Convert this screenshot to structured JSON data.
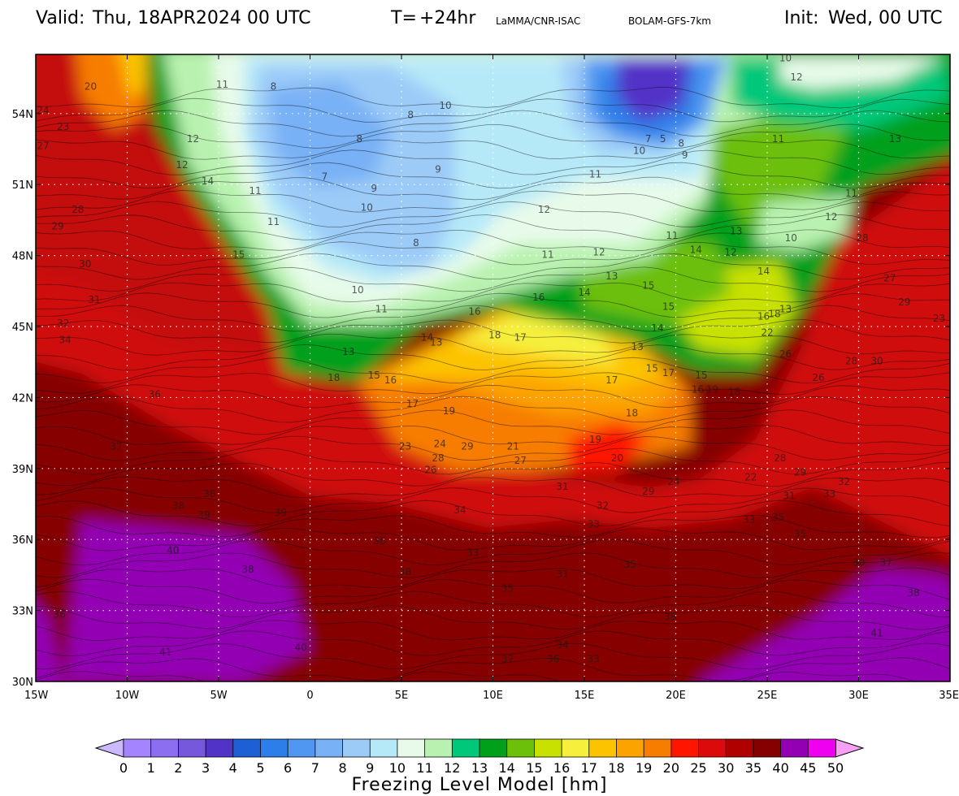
{
  "header": {
    "valid_label": "Valid:",
    "valid_value": "Thu, 18APR2024   00 UTC",
    "t_label": "T=",
    "t_value": "+24hr",
    "source": "LaMMA/CNR-ISAC",
    "model": "BOLAM-GFS-7km",
    "init_label": "Init:",
    "init_value": "Wed, 00 UTC"
  },
  "map": {
    "lon_ticks": [
      "15W",
      "10W",
      "5W",
      "0",
      "5E",
      "10E",
      "15E",
      "20E",
      "25E",
      "30E",
      "35E"
    ],
    "lat_ticks": [
      "54N",
      "51N",
      "48N",
      "45N",
      "42N",
      "39N",
      "36N",
      "33N",
      "30N"
    ],
    "corner_label": "30N",
    "grid": "dotted",
    "contour_labels": [
      {
        "v": "24",
        "lon": -14.6,
        "lat": 54
      },
      {
        "v": "20",
        "lon": -12,
        "lat": 55
      },
      {
        "v": "23",
        "lon": -13.5,
        "lat": 53.3
      },
      {
        "v": "27",
        "lon": -14.6,
        "lat": 52.5
      },
      {
        "v": "28",
        "lon": -12.7,
        "lat": 49.8
      },
      {
        "v": "29",
        "lon": -13.8,
        "lat": 49.1
      },
      {
        "v": "30",
        "lon": -12.3,
        "lat": 47.5
      },
      {
        "v": "31",
        "lon": -11.8,
        "lat": 46
      },
      {
        "v": "32",
        "lon": -13.5,
        "lat": 45
      },
      {
        "v": "34",
        "lon": -13.4,
        "lat": 44.3
      },
      {
        "v": "36",
        "lon": -8.5,
        "lat": 42
      },
      {
        "v": "37",
        "lon": -10.6,
        "lat": 39.8
      },
      {
        "v": "38",
        "lon": -5.5,
        "lat": 37.8
      },
      {
        "v": "38",
        "lon": -7.2,
        "lat": 37.3
      },
      {
        "v": "39",
        "lon": -5.8,
        "lat": 36.9
      },
      {
        "v": "39",
        "lon": -1.6,
        "lat": 37
      },
      {
        "v": "40",
        "lon": -7.5,
        "lat": 35.4
      },
      {
        "v": "38",
        "lon": -3.4,
        "lat": 34.6
      },
      {
        "v": "36",
        "lon": -13.7,
        "lat": 32.7
      },
      {
        "v": "41",
        "lon": -7.9,
        "lat": 31.1
      },
      {
        "v": "40",
        "lon": -0.5,
        "lat": 31.3
      },
      {
        "v": "36",
        "lon": 3.8,
        "lat": 35.8
      },
      {
        "v": "38",
        "lon": 5.2,
        "lat": 34.5
      },
      {
        "v": "34",
        "lon": 8.2,
        "lat": 37.1
      },
      {
        "v": "33",
        "lon": 8.9,
        "lat": 35.3
      },
      {
        "v": "35",
        "lon": 10.8,
        "lat": 33.8
      },
      {
        "v": "31",
        "lon": 13.8,
        "lat": 34.4
      },
      {
        "v": "33",
        "lon": 15.5,
        "lat": 36.5
      },
      {
        "v": "34",
        "lon": 13.8,
        "lat": 31.4
      },
      {
        "v": "37",
        "lon": 10.8,
        "lat": 30.8
      },
      {
        "v": "36",
        "lon": 13.3,
        "lat": 30.8
      },
      {
        "v": "33",
        "lon": 15.5,
        "lat": 30.8
      },
      {
        "v": "38",
        "lon": 19.7,
        "lat": 32.6
      },
      {
        "v": "35",
        "lon": 17.5,
        "lat": 34.8
      },
      {
        "v": "33",
        "lon": 24,
        "lat": 36.7
      },
      {
        "v": "35",
        "lon": 25.6,
        "lat": 36.8
      },
      {
        "v": "30",
        "lon": 30,
        "lat": 34.9
      },
      {
        "v": "37",
        "lon": 31.5,
        "lat": 34.9
      },
      {
        "v": "38",
        "lon": 33,
        "lat": 33.6
      },
      {
        "v": "41",
        "lon": 31,
        "lat": 31.9
      },
      {
        "v": "31",
        "lon": 13.8,
        "lat": 38.1
      },
      {
        "v": "32",
        "lon": 16,
        "lat": 37.3
      },
      {
        "v": "29",
        "lon": 18.5,
        "lat": 37.9
      },
      {
        "v": "24",
        "lon": 19.9,
        "lat": 38.3
      },
      {
        "v": "22",
        "lon": 24.1,
        "lat": 38.5
      },
      {
        "v": "28",
        "lon": 25.7,
        "lat": 39.3
      },
      {
        "v": "29",
        "lon": 26.8,
        "lat": 38.7
      },
      {
        "v": "31",
        "lon": 26.2,
        "lat": 37.7
      },
      {
        "v": "33",
        "lon": 28.4,
        "lat": 37.8
      },
      {
        "v": "35",
        "lon": 26.8,
        "lat": 36.1
      },
      {
        "v": "32",
        "lon": 29.2,
        "lat": 38.3
      },
      {
        "v": "26",
        "lon": 26,
        "lat": 43.7
      },
      {
        "v": "26",
        "lon": 27.8,
        "lat": 42.7
      },
      {
        "v": "28",
        "lon": 29.6,
        "lat": 43.4
      },
      {
        "v": "30",
        "lon": 31,
        "lat": 43.4
      },
      {
        "v": "27",
        "lon": 31.7,
        "lat": 46.9
      },
      {
        "v": "29",
        "lon": 32.5,
        "lat": 45.9
      },
      {
        "v": "28",
        "lon": 30.2,
        "lat": 48.6
      },
      {
        "v": "23",
        "lon": 34.4,
        "lat": 45.2
      },
      {
        "v": "22",
        "lon": 25,
        "lat": 44.6
      },
      {
        "v": "18",
        "lon": 25.4,
        "lat": 45.4
      },
      {
        "v": "16",
        "lon": 24.8,
        "lat": 45.3
      },
      {
        "v": "19",
        "lon": 22,
        "lat": 42.2
      },
      {
        "v": "18",
        "lon": 23.2,
        "lat": 42.1
      },
      {
        "v": "16",
        "lon": 21.2,
        "lat": 42.2
      },
      {
        "v": "15",
        "lon": 21.4,
        "lat": 42.8
      },
      {
        "v": "17",
        "lon": 19.6,
        "lat": 42.9
      },
      {
        "v": "18",
        "lon": 17.6,
        "lat": 41.2
      },
      {
        "v": "19",
        "lon": 15.6,
        "lat": 40.1
      },
      {
        "v": "20",
        "lon": 16.8,
        "lat": 39.3
      },
      {
        "v": "21",
        "lon": 11.1,
        "lat": 39.8
      },
      {
        "v": "27",
        "lon": 11.5,
        "lat": 39.2
      },
      {
        "v": "28",
        "lon": 7,
        "lat": 39.3
      },
      {
        "v": "24",
        "lon": 7.1,
        "lat": 39.9
      },
      {
        "v": "23",
        "lon": 5.2,
        "lat": 39.8
      },
      {
        "v": "29",
        "lon": 8.6,
        "lat": 39.8
      },
      {
        "v": "26",
        "lon": 6.6,
        "lat": 38.8
      },
      {
        "v": "19",
        "lon": 7.6,
        "lat": 41.3
      },
      {
        "v": "17",
        "lon": 5.6,
        "lat": 41.6
      },
      {
        "v": "16",
        "lon": 4.4,
        "lat": 42.6
      },
      {
        "v": "15",
        "lon": 3.5,
        "lat": 42.8
      },
      {
        "v": "18",
        "lon": 1.3,
        "lat": 42.7
      },
      {
        "v": "13",
        "lon": 2.1,
        "lat": 43.8
      },
      {
        "v": "14",
        "lon": 6.4,
        "lat": 44.4
      },
      {
        "v": "13",
        "lon": 6.9,
        "lat": 44.2
      },
      {
        "v": "18",
        "lon": 10.1,
        "lat": 44.5
      },
      {
        "v": "17",
        "lon": 11.5,
        "lat": 44.4
      },
      {
        "v": "16",
        "lon": 9,
        "lat": 45.5
      },
      {
        "v": "16",
        "lon": 12.5,
        "lat": 46.1
      },
      {
        "v": "14",
        "lon": 15,
        "lat": 46.3
      },
      {
        "v": "17",
        "lon": 16.5,
        "lat": 42.6
      },
      {
        "v": "15",
        "lon": 18.7,
        "lat": 43.1
      },
      {
        "v": "13",
        "lon": 17.9,
        "lat": 44
      },
      {
        "v": "14",
        "lon": 19,
        "lat": 44.8
      },
      {
        "v": "15",
        "lon": 19.6,
        "lat": 45.7
      },
      {
        "v": "15",
        "lon": 18.5,
        "lat": 46.6
      },
      {
        "v": "13",
        "lon": 16.5,
        "lat": 47
      },
      {
        "v": "14",
        "lon": 21.1,
        "lat": 48.1
      },
      {
        "v": "12",
        "lon": 15.8,
        "lat": 48
      },
      {
        "v": "11",
        "lon": 13,
        "lat": 47.9
      },
      {
        "v": "11",
        "lon": 19.8,
        "lat": 48.7
      },
      {
        "v": "12",
        "lon": 12.8,
        "lat": 49.8
      },
      {
        "v": "11",
        "lon": 15.6,
        "lat": 51.3
      },
      {
        "v": "12",
        "lon": 23,
        "lat": 48
      },
      {
        "v": "13",
        "lon": 23.3,
        "lat": 48.9
      },
      {
        "v": "14",
        "lon": 24.8,
        "lat": 47.2
      },
      {
        "v": "13",
        "lon": 26,
        "lat": 45.6
      },
      {
        "v": "10",
        "lon": 26.3,
        "lat": 48.6
      },
      {
        "v": "11",
        "lon": 29.6,
        "lat": 50.5
      },
      {
        "v": "12",
        "lon": 28.5,
        "lat": 49.5
      },
      {
        "v": "13",
        "lon": 32,
        "lat": 52.8
      },
      {
        "v": "11",
        "lon": 25.6,
        "lat": 52.8
      },
      {
        "v": "12",
        "lon": 26.6,
        "lat": 55.4
      },
      {
        "v": "10",
        "lon": 26,
        "lat": 56.2
      },
      {
        "v": "9",
        "lon": 20.5,
        "lat": 52.1
      },
      {
        "v": "10",
        "lon": 18,
        "lat": 52.3
      },
      {
        "v": "8",
        "lon": 20.3,
        "lat": 52.6
      },
      {
        "v": "7",
        "lon": 18.5,
        "lat": 52.8
      },
      {
        "v": "5",
        "lon": 19.3,
        "lat": 52.8
      },
      {
        "v": "10",
        "lon": 7.4,
        "lat": 54.2
      },
      {
        "v": "9",
        "lon": 7,
        "lat": 51.5
      },
      {
        "v": "8",
        "lon": 5.5,
        "lat": 53.8
      },
      {
        "v": "8",
        "lon": 2.7,
        "lat": 52.8
      },
      {
        "v": "7",
        "lon": 0.8,
        "lat": 51.2
      },
      {
        "v": "9",
        "lon": 3.5,
        "lat": 50.7
      },
      {
        "v": "10",
        "lon": 3.1,
        "lat": 49.9
      },
      {
        "v": "8",
        "lon": 5.8,
        "lat": 48.4
      },
      {
        "v": "10",
        "lon": 2.6,
        "lat": 46.4
      },
      {
        "v": "11",
        "lon": 3.9,
        "lat": 45.6
      },
      {
        "v": "12",
        "lon": -6.4,
        "lat": 52.8
      },
      {
        "v": "11",
        "lon": -4.8,
        "lat": 55.1
      },
      {
        "v": "8",
        "lon": -2,
        "lat": 55
      },
      {
        "v": "14",
        "lon": -5.6,
        "lat": 51
      },
      {
        "v": "11",
        "lon": -3,
        "lat": 50.6
      },
      {
        "v": "11",
        "lon": -2,
        "lat": 49.3
      },
      {
        "v": "15",
        "lon": -3.9,
        "lat": 47.9
      },
      {
        "v": "12",
        "lon": -7,
        "lat": 51.7
      }
    ]
  },
  "colorbar": {
    "labels": [
      "0",
      "1",
      "2",
      "3",
      "4",
      "5",
      "6",
      "7",
      "8",
      "9",
      "10",
      "11",
      "12",
      "13",
      "14",
      "15",
      "16",
      "17",
      "18",
      "19",
      "20",
      "25",
      "30",
      "35",
      "40",
      "45",
      "50"
    ],
    "colors": [
      "#a585ff",
      "#8c6ef0",
      "#7558dc",
      "#5233c8",
      "#1f5fd6",
      "#2d7ee8",
      "#4f97f0",
      "#78b1f5",
      "#9ccbf8",
      "#b6e9f8",
      "#e8fbea",
      "#b9f2b0",
      "#00c87a",
      "#00a01a",
      "#6cc00a",
      "#c8e100",
      "#f6f03c",
      "#fcc400",
      "#fca300",
      "#f77d00",
      "#ff1500",
      "#dc0a0a",
      "#b10000",
      "#850000",
      "#9300b4",
      "#f000f0"
    ],
    "low_color": "#cab9ff",
    "high_color": "#f5a0f5",
    "title": "Freezing Level Model [hm]"
  }
}
